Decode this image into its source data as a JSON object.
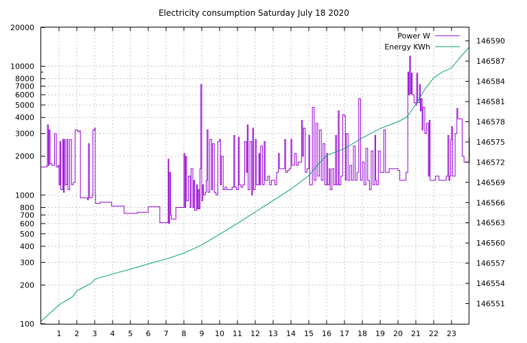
{
  "chart_data": {
    "type": "line",
    "title": "Electricity consumption Saturday July 18 2020",
    "x_ticks": [
      1,
      2,
      3,
      4,
      5,
      6,
      7,
      8,
      9,
      10,
      11,
      12,
      13,
      14,
      15,
      16,
      17,
      18,
      19,
      20,
      21,
      22,
      23
    ],
    "x_range": [
      0,
      24
    ],
    "y_left": {
      "scale": "log",
      "range": [
        100,
        20000
      ],
      "ticks": [
        100,
        200,
        300,
        400,
        500,
        600,
        700,
        800,
        1000,
        2000,
        3000,
        4000,
        5000,
        6000,
        7000,
        8000,
        10000,
        20000
      ]
    },
    "y_right": {
      "range": [
        146548,
        146592
      ],
      "ticks": [
        146551,
        146554,
        146557,
        146560,
        146563,
        146566,
        146569,
        146572,
        146575,
        146578,
        146581,
        146584,
        146587,
        146590
      ]
    },
    "grid": true,
    "legend": "top-right",
    "series": [
      {
        "name": "Power W",
        "axis": "left",
        "color": "#9400d3",
        "points": [
          [
            0,
            1650
          ],
          [
            0.3,
            1680
          ],
          [
            0.35,
            3500
          ],
          [
            0.4,
            1700
          ],
          [
            0.45,
            3200
          ],
          [
            0.5,
            1750
          ],
          [
            0.6,
            1700
          ],
          [
            0.75,
            3000
          ],
          [
            0.85,
            1650
          ],
          [
            0.95,
            1700
          ],
          [
            1.0,
            1200
          ],
          [
            1.05,
            2600
          ],
          [
            1.1,
            1100
          ],
          [
            1.2,
            2700
          ],
          [
            1.25,
            1050
          ],
          [
            1.3,
            2700
          ],
          [
            1.35,
            1200
          ],
          [
            1.45,
            2700
          ],
          [
            1.5,
            1100
          ],
          [
            1.6,
            2700
          ],
          [
            1.7,
            1200
          ],
          [
            1.8,
            1250
          ],
          [
            1.9,
            3200
          ],
          [
            2.0,
            3200
          ],
          [
            2.05,
            3100
          ],
          [
            2.15,
            3150
          ],
          [
            2.2,
            950
          ],
          [
            2.5,
            950
          ],
          [
            2.6,
            920
          ],
          [
            2.65,
            2500
          ],
          [
            2.7,
            950
          ],
          [
            2.85,
            1000
          ],
          [
            2.9,
            3200
          ],
          [
            3.0,
            3300
          ],
          [
            3.03,
            1000
          ],
          [
            3.05,
            860
          ],
          [
            3.3,
            880
          ],
          [
            3.4,
            880
          ],
          [
            3.9,
            880
          ],
          [
            3.95,
            820
          ],
          [
            4.6,
            820
          ],
          [
            4.65,
            720
          ],
          [
            5.3,
            720
          ],
          [
            5.4,
            735
          ],
          [
            5.95,
            735
          ],
          [
            6.0,
            810
          ],
          [
            6.6,
            810
          ],
          [
            6.65,
            610
          ],
          [
            7.0,
            610
          ],
          [
            7.1,
            620
          ],
          [
            7.12,
            1900
          ],
          [
            7.15,
            600
          ],
          [
            7.2,
            1500
          ],
          [
            7.25,
            700
          ],
          [
            7.3,
            650
          ],
          [
            7.5,
            650
          ],
          [
            7.55,
            800
          ],
          [
            7.95,
            800
          ],
          [
            8.0,
            2100
          ],
          [
            8.05,
            800
          ],
          [
            8.1,
            2000
          ],
          [
            8.15,
            900
          ],
          [
            8.25,
            1400
          ],
          [
            8.35,
            800
          ],
          [
            8.4,
            1600
          ],
          [
            8.5,
            800
          ],
          [
            8.55,
            1300
          ],
          [
            8.6,
            760
          ],
          [
            8.7,
            1200
          ],
          [
            8.75,
            780
          ],
          [
            8.8,
            1100
          ],
          [
            8.85,
            780
          ],
          [
            8.9,
            1600
          ],
          [
            8.95,
            7200
          ],
          [
            9.0,
            900
          ],
          [
            9.05,
            1200
          ],
          [
            9.1,
            1000
          ],
          [
            9.2,
            1050
          ],
          [
            9.25,
            1300
          ],
          [
            9.3,
            3200
          ],
          [
            9.35,
            1050
          ],
          [
            9.45,
            2700
          ],
          [
            9.55,
            1100
          ],
          [
            9.6,
            2500
          ],
          [
            9.7,
            1050
          ],
          [
            9.8,
            1000
          ],
          [
            9.9,
            2600
          ],
          [
            10.0,
            2700
          ],
          [
            10.05,
            1200
          ],
          [
            10.1,
            2000
          ],
          [
            10.2,
            1100
          ],
          [
            10.3,
            1150
          ],
          [
            10.4,
            1100
          ],
          [
            10.6,
            1100
          ],
          [
            10.7,
            1150
          ],
          [
            10.8,
            2900
          ],
          [
            10.85,
            1150
          ],
          [
            10.95,
            1100
          ],
          [
            11.05,
            2800
          ],
          [
            11.1,
            1200
          ],
          [
            11.2,
            1150
          ],
          [
            11.3,
            1200
          ],
          [
            11.4,
            2600
          ],
          [
            11.5,
            1500
          ],
          [
            11.55,
            3500
          ],
          [
            11.6,
            1100
          ],
          [
            11.7,
            2600
          ],
          [
            11.8,
            1000
          ],
          [
            11.85,
            3300
          ],
          [
            11.9,
            1100
          ],
          [
            12.0,
            2700
          ],
          [
            12.05,
            1200
          ],
          [
            12.2,
            2100
          ],
          [
            12.25,
            1200
          ],
          [
            12.3,
            2400
          ],
          [
            12.4,
            1200
          ],
          [
            12.5,
            2600
          ],
          [
            12.55,
            1300
          ],
          [
            12.7,
            1400
          ],
          [
            12.8,
            1200
          ],
          [
            12.9,
            1300
          ],
          [
            13.0,
            1300
          ],
          [
            13.1,
            1200
          ],
          [
            13.2,
            1500
          ],
          [
            13.3,
            2100
          ],
          [
            13.35,
            1600
          ],
          [
            13.5,
            1600
          ],
          [
            13.65,
            2700
          ],
          [
            13.7,
            1500
          ],
          [
            13.8,
            1550
          ],
          [
            13.9,
            1600
          ],
          [
            14.0,
            2700
          ],
          [
            14.05,
            1700
          ],
          [
            14.2,
            2100
          ],
          [
            14.3,
            1700
          ],
          [
            14.4,
            1800
          ],
          [
            14.6,
            3800
          ],
          [
            14.65,
            2000
          ],
          [
            14.7,
            3300
          ],
          [
            14.8,
            1500
          ],
          [
            14.9,
            1600
          ],
          [
            15.0,
            2900
          ],
          [
            15.05,
            1200
          ],
          [
            15.2,
            4800
          ],
          [
            15.3,
            1300
          ],
          [
            15.4,
            3600
          ],
          [
            15.5,
            1400
          ],
          [
            15.6,
            3200
          ],
          [
            15.7,
            1300
          ],
          [
            15.8,
            2500
          ],
          [
            15.9,
            1200
          ],
          [
            16.0,
            2100
          ],
          [
            16.05,
            1200
          ],
          [
            16.15,
            1600
          ],
          [
            16.2,
            1100
          ],
          [
            16.3,
            1600
          ],
          [
            16.4,
            1200
          ],
          [
            16.5,
            2900
          ],
          [
            16.55,
            1200
          ],
          [
            16.65,
            4500
          ],
          [
            16.7,
            1200
          ],
          [
            16.8,
            1400
          ],
          [
            16.9,
            4200
          ],
          [
            17.0,
            4100
          ],
          [
            17.05,
            1300
          ],
          [
            17.1,
            3000
          ],
          [
            17.2,
            1300
          ],
          [
            17.3,
            1700
          ],
          [
            17.4,
            1300
          ],
          [
            17.5,
            2400
          ],
          [
            17.6,
            1300
          ],
          [
            17.7,
            1500
          ],
          [
            17.8,
            5600
          ],
          [
            17.9,
            1300
          ],
          [
            18.0,
            1800
          ],
          [
            18.1,
            1200
          ],
          [
            18.2,
            2300
          ],
          [
            18.3,
            1300
          ],
          [
            18.4,
            1100
          ],
          [
            18.5,
            2200
          ],
          [
            18.6,
            1200
          ],
          [
            18.7,
            2900
          ],
          [
            18.75,
            1300
          ],
          [
            18.8,
            1200
          ],
          [
            18.9,
            2200
          ],
          [
            19.0,
            1500
          ],
          [
            19.2,
            3200
          ],
          [
            19.3,
            1500
          ],
          [
            19.5,
            1600
          ],
          [
            19.9,
            1600
          ],
          [
            20.0,
            1550
          ],
          [
            20.1,
            1300
          ],
          [
            20.3,
            1300
          ],
          [
            20.45,
            1500
          ],
          [
            20.55,
            9000
          ],
          [
            20.6,
            6000
          ],
          [
            20.65,
            12000
          ],
          [
            20.7,
            6100
          ],
          [
            20.75,
            8800
          ],
          [
            20.8,
            6000
          ],
          [
            20.9,
            5200
          ],
          [
            21.0,
            5000
          ],
          [
            21.05,
            8800
          ],
          [
            21.1,
            5200
          ],
          [
            21.2,
            7200
          ],
          [
            21.25,
            4500
          ],
          [
            21.3,
            5600
          ],
          [
            21.35,
            3200
          ],
          [
            21.4,
            4800
          ],
          [
            21.5,
            3000
          ],
          [
            21.6,
            3600
          ],
          [
            21.7,
            1400
          ],
          [
            21.75,
            3800
          ],
          [
            21.8,
            1300
          ],
          [
            22.0,
            1300
          ],
          [
            22.1,
            1400
          ],
          [
            22.3,
            1300
          ],
          [
            22.5,
            1300
          ],
          [
            22.7,
            1400
          ],
          [
            22.8,
            2900
          ],
          [
            22.85,
            1300
          ],
          [
            22.9,
            1400
          ],
          [
            22.95,
            2700
          ],
          [
            23.0,
            3400
          ],
          [
            23.05,
            1400
          ],
          [
            23.2,
            3000
          ],
          [
            23.3,
            4700
          ],
          [
            23.35,
            3900
          ],
          [
            23.5,
            3900
          ],
          [
            23.6,
            2000
          ],
          [
            23.7,
            1800
          ],
          [
            23.8,
            1800
          ],
          [
            24.0,
            2800
          ]
        ]
      },
      {
        "name": "Energy KWh",
        "axis": "right",
        "color": "#009e73",
        "points": [
          [
            0,
            146548.4
          ],
          [
            1,
            146550.8
          ],
          [
            1.8,
            146552.1
          ],
          [
            2,
            146552.9
          ],
          [
            2.5,
            146553.6
          ],
          [
            2.8,
            146554.0
          ],
          [
            3.0,
            146554.6
          ],
          [
            4,
            146555.4
          ],
          [
            5,
            146556.1
          ],
          [
            6,
            146556.9
          ],
          [
            7,
            146557.6
          ],
          [
            8,
            146558.5
          ],
          [
            9,
            146559.7
          ],
          [
            10,
            146561.3
          ],
          [
            11,
            146562.9
          ],
          [
            12,
            146564.6
          ],
          [
            13,
            146566.3
          ],
          [
            14,
            146568.0
          ],
          [
            15,
            146570.0
          ],
          [
            15.5,
            146571.6
          ],
          [
            16,
            146573.0
          ],
          [
            17,
            146574.0
          ],
          [
            18,
            146575.6
          ],
          [
            19,
            146577.0
          ],
          [
            20,
            146578.0
          ],
          [
            20.5,
            146578.7
          ],
          [
            21,
            146580.6
          ],
          [
            21.5,
            146582.8
          ],
          [
            22,
            146584.5
          ],
          [
            22.5,
            146585.4
          ],
          [
            23,
            146586.0
          ],
          [
            23.5,
            146587.6
          ],
          [
            24,
            146589.1
          ]
        ]
      }
    ]
  }
}
